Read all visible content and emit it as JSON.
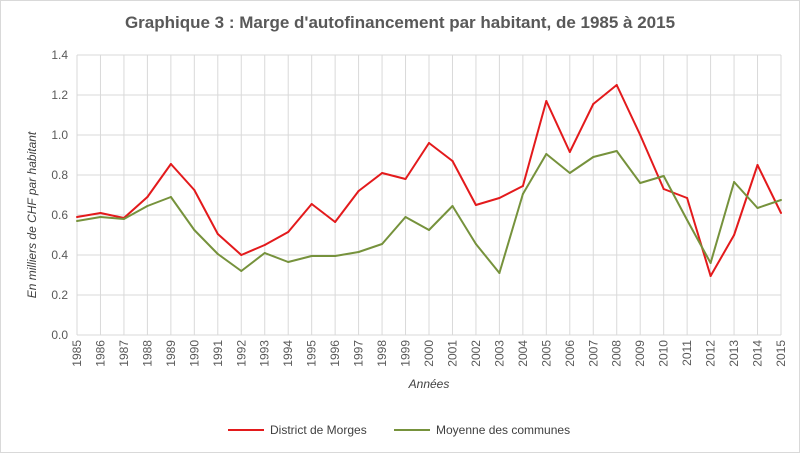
{
  "colors": {
    "district": "#e31a1c",
    "moyenne": "#76923c",
    "grid": "#d9d9d9",
    "text": "#595959"
  },
  "chart_data": {
    "type": "line",
    "title": "Graphique 3 : Marge d'autofinancement par habitant, de 1985 à 2015",
    "xlabel": "Années",
    "ylabel": "En milliers de CHF par habitant",
    "ylim": [
      0,
      1.4
    ],
    "yticks": [
      "0.0",
      "0.2",
      "0.4",
      "0.6",
      "0.8",
      "1.0",
      "1.2",
      "1.4"
    ],
    "grid": true,
    "legend_position": "bottom",
    "x": [
      "1985",
      "1986",
      "1987",
      "1988",
      "1989",
      "1990",
      "1991",
      "1992",
      "1993",
      "1994",
      "1995",
      "1996",
      "1997",
      "1998",
      "1999",
      "2000",
      "2001",
      "2002",
      "2003",
      "2004",
      "2005",
      "2006",
      "2007",
      "2008",
      "2009",
      "2010",
      "2011",
      "2012",
      "2013",
      "2014",
      "2015"
    ],
    "series": [
      {
        "name": "District de Morges",
        "color": "#e31a1c",
        "values": [
          0.59,
          0.61,
          0.585,
          0.69,
          0.855,
          0.725,
          0.505,
          0.4,
          0.45,
          0.515,
          0.655,
          0.565,
          0.72,
          0.81,
          0.78,
          0.96,
          0.87,
          0.65,
          0.685,
          0.745,
          1.17,
          0.915,
          1.155,
          1.25,
          1.0,
          0.73,
          0.685,
          0.295,
          0.5,
          0.85,
          0.61
        ]
      },
      {
        "name": "Moyenne des communes",
        "color": "#76923c",
        "values": [
          0.57,
          0.59,
          0.58,
          0.645,
          0.69,
          0.525,
          0.405,
          0.32,
          0.41,
          0.365,
          0.395,
          0.395,
          0.415,
          0.455,
          0.59,
          0.525,
          0.645,
          0.455,
          0.31,
          0.705,
          0.905,
          0.81,
          0.89,
          0.92,
          0.76,
          0.795,
          0.575,
          0.36,
          0.765,
          0.635,
          0.675
        ]
      }
    ]
  }
}
